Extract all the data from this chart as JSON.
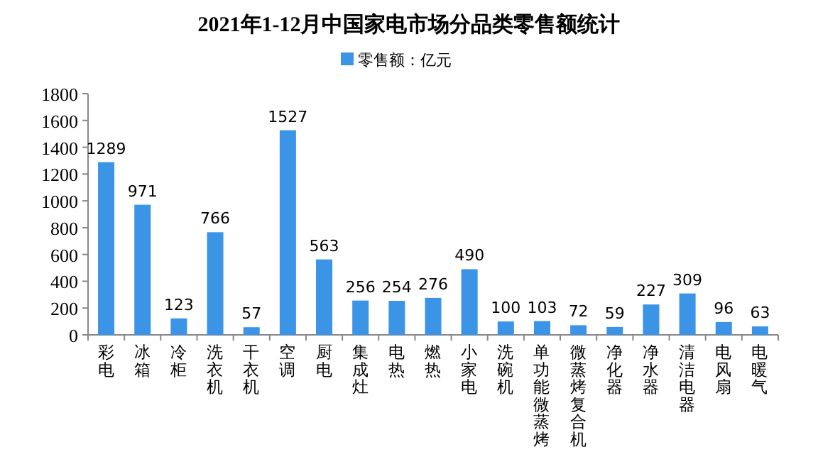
{
  "chart_data": {
    "type": "bar",
    "title": "2021年1-12月中国家电市场分品类零售额统计",
    "categories": [
      "彩电",
      "冰箱",
      "冷柜",
      "洗衣机",
      "干衣机",
      "空调",
      "厨电",
      "集成灶",
      "电热",
      "燃热",
      "小家电",
      "洗碗机",
      "单功能微蒸烤",
      "微蒸烤复合机",
      "净化器",
      "净水器",
      "清洁电器",
      "电风扇",
      "电暖气"
    ],
    "series": [
      {
        "name": "零售额：亿元",
        "color": "#3b94e6",
        "values": [
          1289,
          971,
          123,
          766,
          57,
          1527,
          563,
          256,
          254,
          276,
          490,
          100,
          103,
          72,
          59,
          227,
          309,
          96,
          63
        ]
      }
    ],
    "data_labels": true,
    "ylim": [
      0,
      1800
    ],
    "yticks": [
      0,
      200,
      400,
      600,
      800,
      1000,
      1200,
      1400,
      1600,
      1800
    ],
    "grid": false,
    "legend": "top"
  }
}
